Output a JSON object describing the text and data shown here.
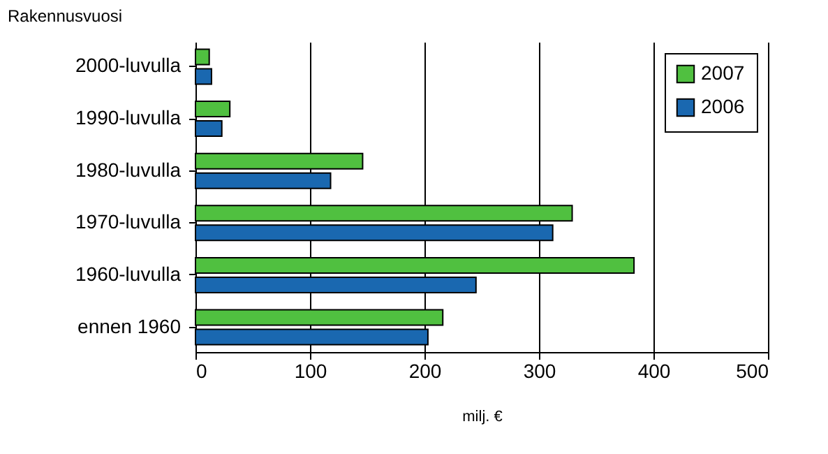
{
  "chart_data": {
    "type": "bar",
    "orientation": "horizontal",
    "ylabel": "Rakennusvuosi",
    "xlabel": "milj. €",
    "categories": [
      "2000-luvulla",
      "1990-luvulla",
      "1980-luvulla",
      "1970-luvulla",
      "1960-luvulla",
      "ennen 1960"
    ],
    "series": [
      {
        "name": "2007",
        "color": "#50c040",
        "values": [
          12,
          30,
          146,
          329,
          383,
          216
        ]
      },
      {
        "name": "2006",
        "color": "#1a68b0",
        "values": [
          14,
          23,
          118,
          312,
          245,
          203
        ]
      }
    ],
    "xlim": [
      0,
      500
    ],
    "xticks": [
      0,
      100,
      200,
      300,
      400,
      500
    ],
    "grid": "x",
    "legend": "top right"
  }
}
